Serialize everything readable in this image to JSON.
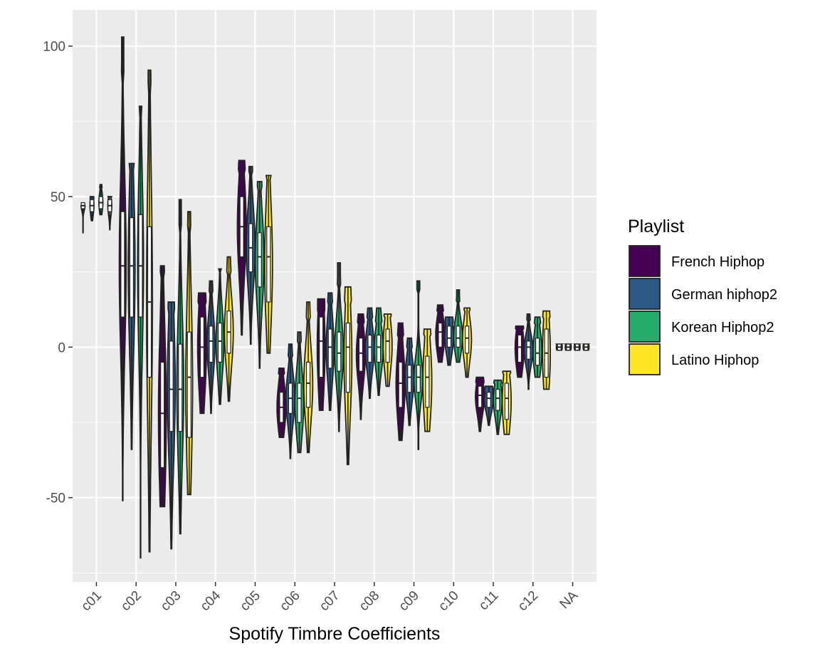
{
  "chart_data": {
    "type": "violin",
    "title": "",
    "xlabel": "Spotify Timbre Coefficients",
    "ylabel": "",
    "categories": [
      "c01",
      "c02",
      "c03",
      "c04",
      "c05",
      "c06",
      "c07",
      "c08",
      "c09",
      "c10",
      "c11",
      "c12",
      "NA"
    ],
    "ylim": [
      -78,
      112
    ],
    "yticks": [
      -50,
      0,
      50,
      100
    ],
    "grid": true,
    "legend": {
      "title": "Playlist",
      "position": "right"
    },
    "series": [
      {
        "name": "French Hiphop",
        "color": "#440154",
        "stats": [
          [
            38,
            47,
            50,
            46,
            48,
            47,
            0.2
          ],
          [
            -51,
            103,
            90,
            10,
            45,
            27,
            0.35
          ],
          [
            -53,
            27,
            25,
            -40,
            -5,
            -22,
            0.4
          ],
          [
            -22,
            18,
            15,
            -10,
            10,
            0,
            0.45
          ],
          [
            4,
            62,
            58,
            30,
            50,
            40,
            0.45
          ],
          [
            -30,
            -7,
            -9,
            -25,
            -15,
            -20,
            0.55
          ],
          [
            -21,
            16,
            12,
            -10,
            10,
            2,
            0.4
          ],
          [
            -24,
            11,
            8,
            -8,
            3,
            -2,
            0.5
          ],
          [
            -31,
            8,
            4,
            -20,
            -5,
            -12,
            0.5
          ],
          [
            -5,
            14,
            12,
            0,
            8,
            5,
            0.5
          ],
          [
            -28,
            -10,
            -12,
            -20,
            -13,
            -16,
            0.5
          ],
          [
            -10,
            7,
            6,
            -5,
            4,
            0,
            0.5
          ],
          [
            -1,
            1,
            1,
            -1,
            1,
            0,
            0.3
          ]
        ]
      },
      {
        "name": "German hiphop2",
        "color": "#2C5A85",
        "stats": [
          [
            42,
            50,
            49,
            45,
            49,
            47,
            0.2
          ],
          [
            -34,
            61,
            60,
            10,
            43,
            27,
            0.35
          ],
          [
            -67,
            15,
            12,
            -28,
            2,
            -14,
            0.4
          ],
          [
            -22,
            22,
            18,
            -5,
            7,
            2,
            0.4
          ],
          [
            1,
            60,
            58,
            25,
            41,
            33,
            0.45
          ],
          [
            -37,
            1,
            -3,
            -22,
            -12,
            -17,
            0.5
          ],
          [
            -21,
            18,
            15,
            -7,
            6,
            0,
            0.4
          ],
          [
            -17,
            13,
            10,
            -5,
            4,
            0,
            0.5
          ],
          [
            -26,
            3,
            0,
            -15,
            -6,
            -10,
            0.5
          ],
          [
            -6,
            10,
            8,
            0,
            7,
            3,
            0.5
          ],
          [
            -26,
            -13,
            -15,
            -20,
            -15,
            -17,
            0.5
          ],
          [
            -14,
            11,
            9,
            -4,
            2,
            0,
            0.45
          ],
          [
            -1,
            1,
            1,
            -1,
            1,
            0,
            0.3
          ]
        ]
      },
      {
        "name": "Korean Hiphop2",
        "color": "#27AD6B",
        "stats": [
          [
            44,
            54,
            53,
            46,
            50,
            48,
            0.2
          ],
          [
            -70,
            80,
            78,
            10,
            44,
            27,
            0.3
          ],
          [
            -62,
            49,
            40,
            -28,
            1,
            -14,
            0.35
          ],
          [
            -19,
            26,
            25,
            -5,
            8,
            2,
            0.4
          ],
          [
            -7,
            55,
            52,
            20,
            38,
            30,
            0.45
          ],
          [
            -35,
            5,
            2,
            -25,
            -12,
            -17,
            0.5
          ],
          [
            -28,
            28,
            20,
            -8,
            5,
            -2,
            0.45
          ],
          [
            -16,
            13,
            8,
            -5,
            4,
            0,
            0.5
          ],
          [
            -34,
            22,
            18,
            -15,
            -6,
            -10,
            0.5
          ],
          [
            -5,
            19,
            15,
            0,
            7,
            3,
            0.5
          ],
          [
            -29,
            -11,
            -12,
            -21,
            -14,
            -17,
            0.5
          ],
          [
            -10,
            10,
            8,
            -6,
            3,
            -2,
            0.45
          ],
          [
            -1,
            1,
            1,
            -1,
            1,
            0,
            0.3
          ]
        ]
      },
      {
        "name": "Latino Hiphop",
        "color": "#FDE725",
        "stats": [
          [
            39,
            50,
            50,
            45,
            49,
            47,
            0.2
          ],
          [
            -68,
            92,
            85,
            -10,
            40,
            15,
            0.3
          ],
          [
            -49,
            45,
            38,
            -30,
            5,
            -10,
            0.35
          ],
          [
            -18,
            30,
            25,
            -2,
            12,
            5,
            0.45
          ],
          [
            -2,
            57,
            57,
            15,
            40,
            30,
            0.4
          ],
          [
            -35,
            15,
            10,
            -20,
            -5,
            -12,
            0.5
          ],
          [
            -39,
            20,
            15,
            -15,
            8,
            0,
            0.4
          ],
          [
            -13,
            11,
            10,
            -5,
            6,
            2,
            0.5
          ],
          [
            -28,
            6,
            4,
            -20,
            -3,
            -10,
            0.5
          ],
          [
            -10,
            13,
            12,
            -2,
            7,
            3,
            0.5
          ],
          [
            -29,
            -8,
            -9,
            -24,
            -12,
            -17,
            0.5
          ],
          [
            -14,
            12,
            10,
            -10,
            6,
            -2,
            0.4
          ],
          [
            -1,
            1,
            1,
            -1,
            1,
            0,
            0.3
          ]
        ]
      }
    ]
  }
}
